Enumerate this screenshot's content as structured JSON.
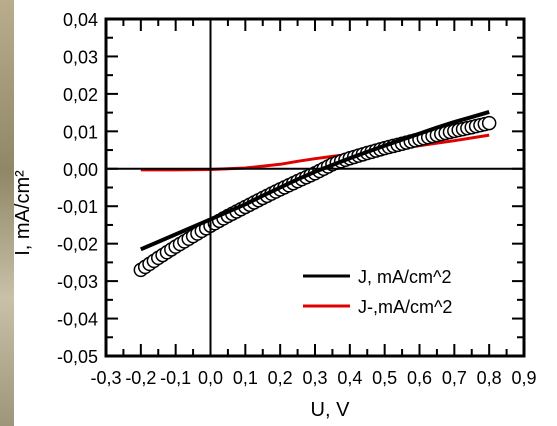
{
  "chart_data": {
    "type": "line",
    "title": "",
    "xlabel": "U, V",
    "ylabel": "I, mA/cm²",
    "xlim": [
      -0.3,
      0.9
    ],
    "ylim": [
      -0.05,
      0.04
    ],
    "x_ticks": [
      -0.3,
      -0.2,
      -0.1,
      0.0,
      0.1,
      0.2,
      0.3,
      0.4,
      0.5,
      0.6,
      0.7,
      0.8,
      0.9
    ],
    "x_tick_labels": [
      "-0,3",
      "-0,2",
      "-0,1",
      "0,0",
      "0,1",
      "0,2",
      "0,3",
      "0,4",
      "0,5",
      "0,6",
      "0,7",
      "0,8",
      "0,9"
    ],
    "y_ticks": [
      0.04,
      0.03,
      0.02,
      0.01,
      0.0,
      -0.01,
      -0.02,
      -0.03,
      -0.04,
      -0.05
    ],
    "y_tick_labels": [
      "0,04",
      "0,03",
      "0,02",
      "0,01",
      "0,00",
      "-0,01",
      "-0,02",
      "-0,03",
      "-0,04",
      "-0,05"
    ],
    "grid": false,
    "zero_lines": true,
    "legend_position": "bottom-right",
    "series": [
      {
        "name": "J, mA/cm^2",
        "color": "#000000",
        "marker": "line",
        "x": [
          -0.2,
          -0.15,
          -0.1,
          -0.05,
          0.0,
          0.05,
          0.1,
          0.15,
          0.2,
          0.25,
          0.3,
          0.35,
          0.4,
          0.45,
          0.5,
          0.55,
          0.6,
          0.65,
          0.7,
          0.75,
          0.8
        ],
        "y": [
          -0.0215,
          -0.0195,
          -0.0175,
          -0.0155,
          -0.0135,
          -0.0115,
          -0.0095,
          -0.0072,
          -0.005,
          -0.0028,
          -0.0008,
          0.001,
          0.0028,
          0.0045,
          0.0062,
          0.0078,
          0.0094,
          0.011,
          0.0125,
          0.0138,
          0.0152
        ]
      },
      {
        "name": "J-,mA/cm^2",
        "color": "#e00000",
        "marker": "line",
        "x": [
          -0.2,
          -0.1,
          0.0,
          0.1,
          0.2,
          0.25,
          0.3,
          0.35,
          0.4,
          0.5,
          0.6,
          0.7,
          0.8
        ],
        "y": [
          -0.0003,
          -0.0003,
          -0.0002,
          0.0002,
          0.0012,
          0.002,
          0.0027,
          0.0033,
          0.0039,
          0.005,
          0.0062,
          0.0075,
          0.009
        ]
      },
      {
        "name": "",
        "color": "#000000",
        "marker": "open-circle",
        "x": [
          -0.2,
          -0.15,
          -0.1,
          -0.05,
          0.0,
          0.05,
          0.1,
          0.15,
          0.2,
          0.25,
          0.3,
          0.35,
          0.4,
          0.45,
          0.5,
          0.55,
          0.6,
          0.65,
          0.7,
          0.75,
          0.8
        ],
        "y": [
          -0.027,
          -0.0238,
          -0.0208,
          -0.018,
          -0.0152,
          -0.0126,
          -0.0102,
          -0.0078,
          -0.0055,
          -0.0033,
          -0.0012,
          0.0012,
          0.0028,
          0.0042,
          0.0055,
          0.0067,
          0.0079,
          0.009,
          0.0101,
          0.0111,
          0.0122
        ]
      }
    ]
  }
}
